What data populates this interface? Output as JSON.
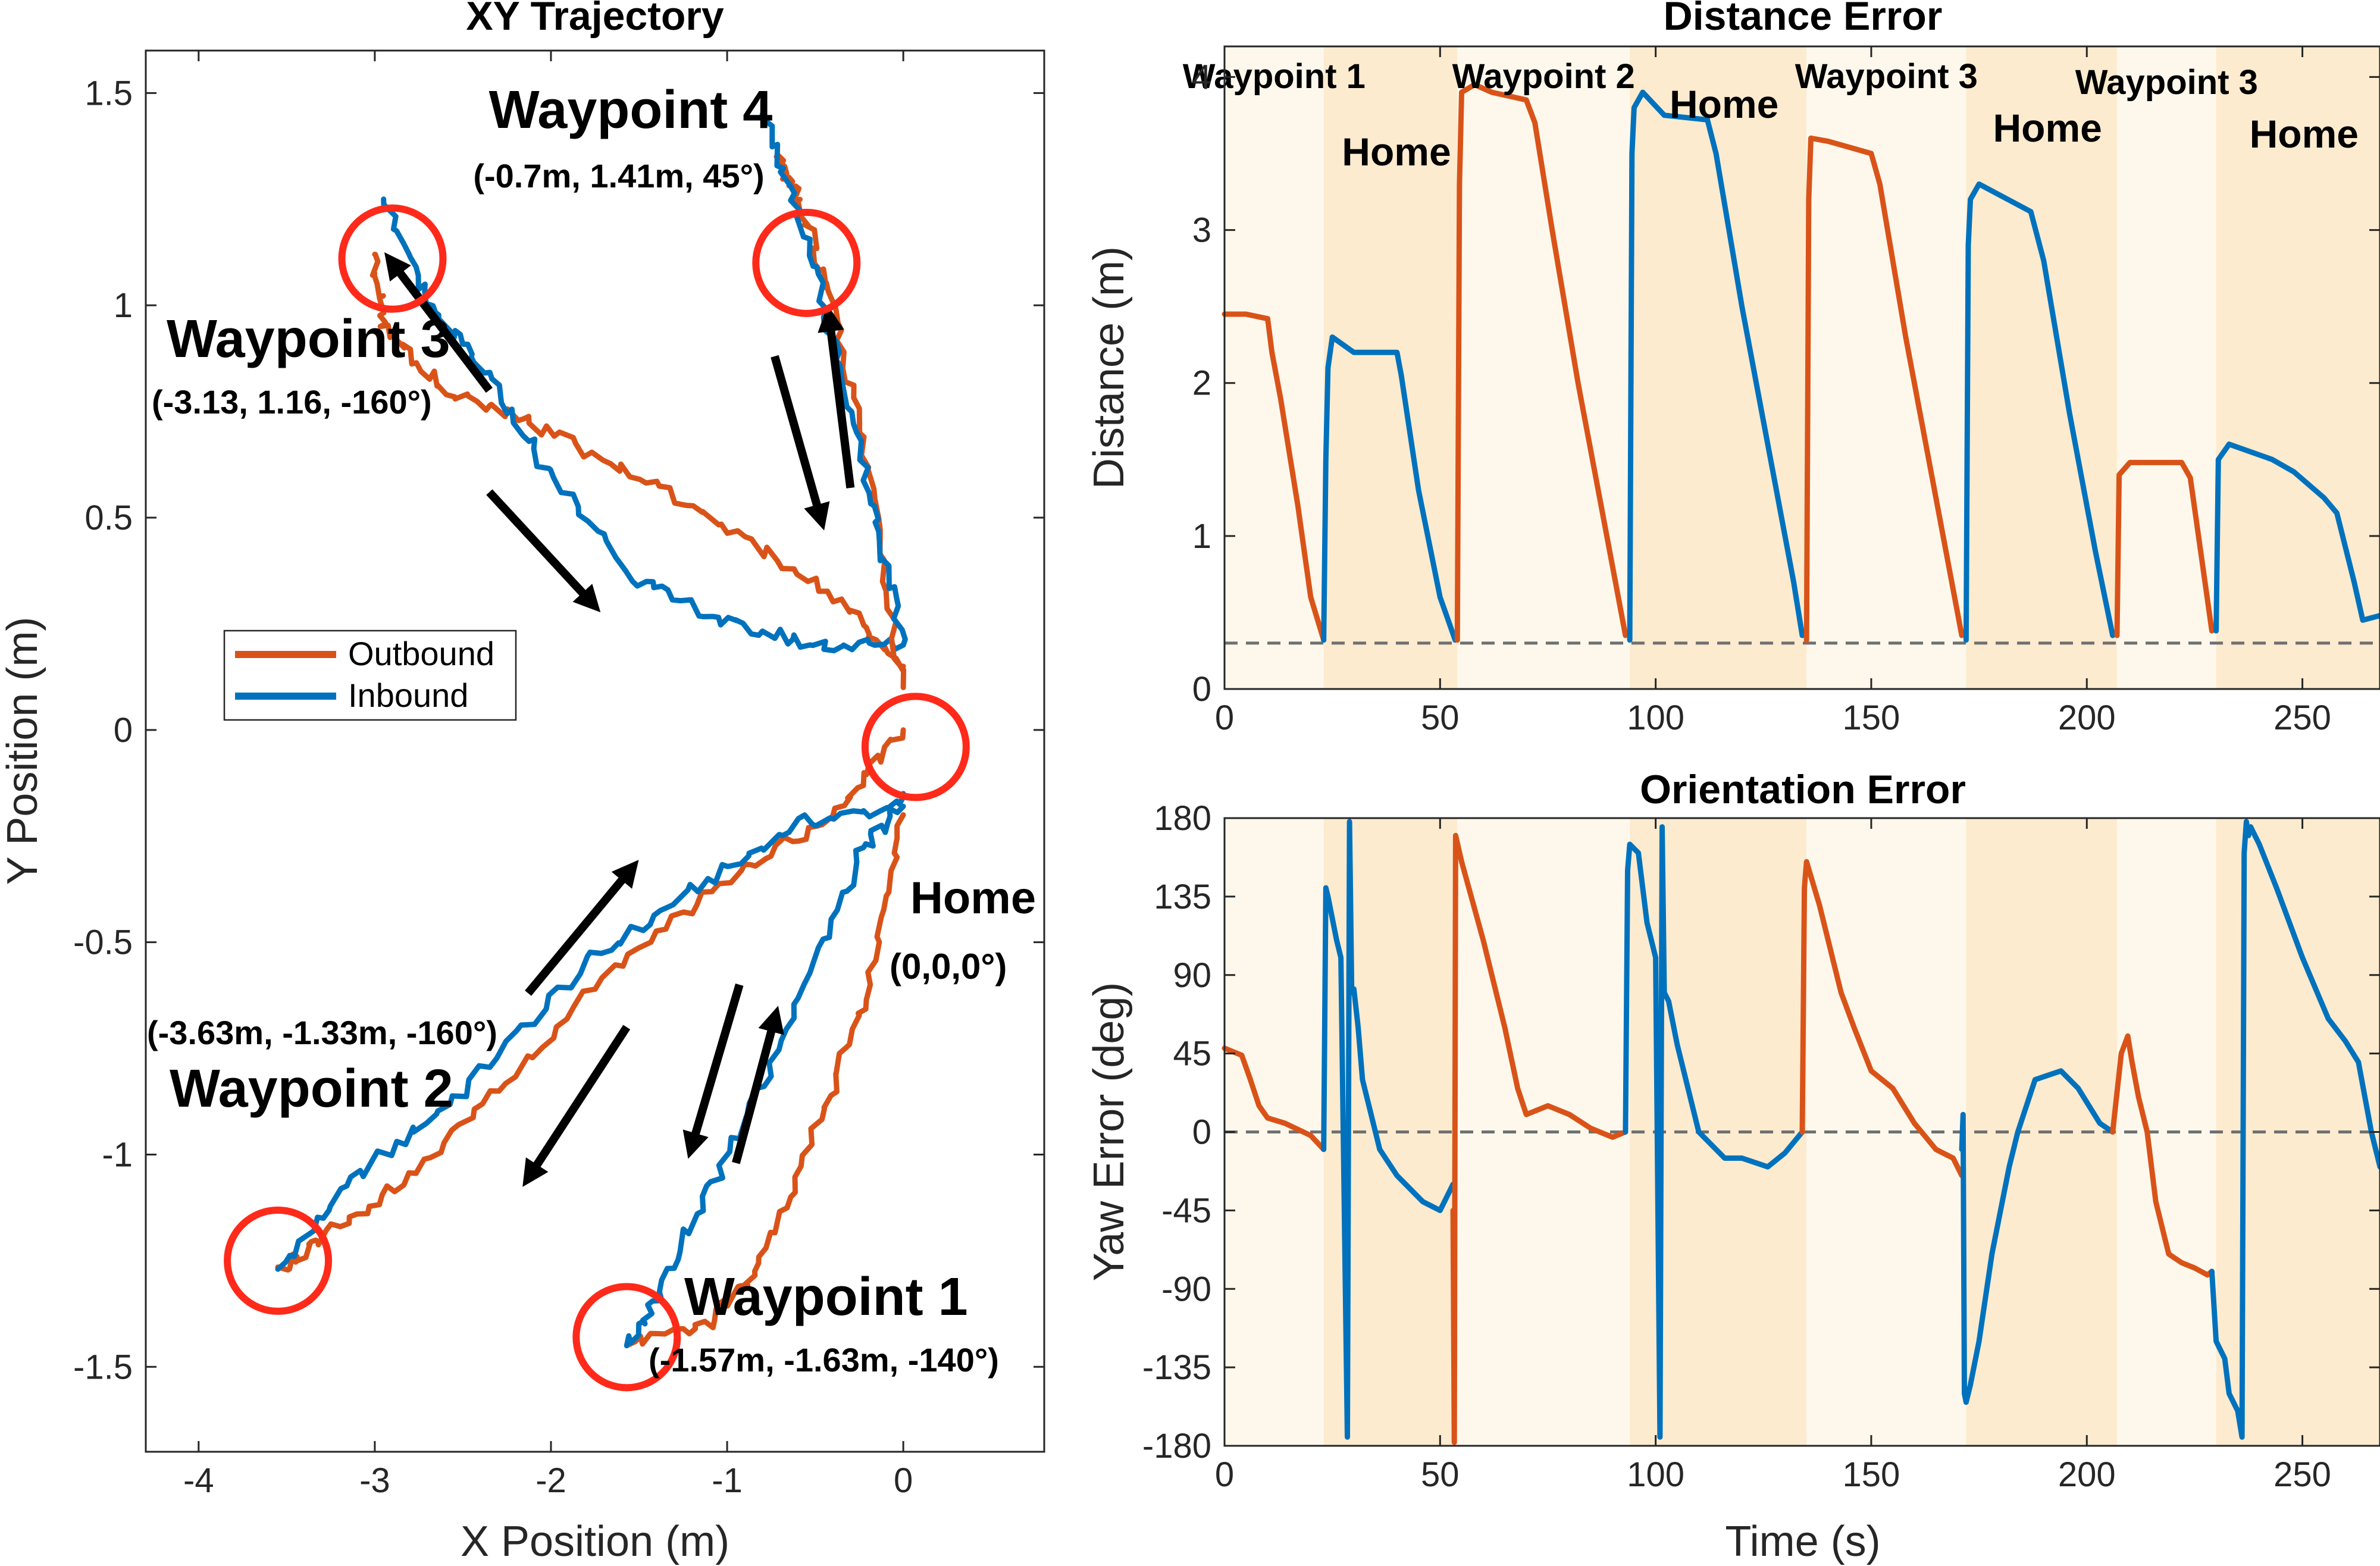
{
  "colors": {
    "outbound": "#D95319",
    "inbound": "#0072BD",
    "circle": "#FF2A1A",
    "arrow": "#000000",
    "shade_light": "#FEF8EC",
    "shade_dark": "#FCEBCF",
    "axis": "#262626",
    "dashed": "#707070"
  },
  "chart_data": [
    {
      "type": "line",
      "id": "xy",
      "title": "XY Trajectory",
      "xlabel": "X Position (m)",
      "ylabel": "Y Position (m)",
      "xlim": [
        -4.3,
        0.8
      ],
      "ylim": [
        -1.7,
        1.6
      ],
      "xticks": [
        -4,
        -3,
        -2,
        -1,
        0
      ],
      "xtick_labels": [
        "-4",
        "-3",
        "-2",
        "-1",
        "0"
      ],
      "yticks": [
        -1.5,
        -1,
        -0.5,
        0,
        0.5,
        1,
        1.5
      ],
      "ytick_labels": [
        "-1.5",
        "-1",
        "-0.5",
        "0",
        "0.5",
        "1",
        "1.5"
      ],
      "legend": {
        "position": "middle-left",
        "entries": [
          "Outbound",
          "Inbound"
        ]
      },
      "series": [
        {
          "name": "Outbound",
          "path_points": [
            [
              0,
              0
            ],
            [
              -0.35,
              -0.18
            ],
            [
              -0.85,
              -0.32
            ],
            [
              -1.5,
              -0.5
            ],
            [
              -2.2,
              -0.8
            ],
            [
              -2.8,
              -1.05
            ],
            [
              -3.3,
              -1.2
            ],
            [
              -3.55,
              -1.27
            ]
          ]
        },
        {
          "name": "Inbound",
          "path_points": [
            [
              -3.55,
              -1.27
            ],
            [
              -3.1,
              -1.05
            ],
            [
              -2.5,
              -0.85
            ],
            [
              -1.8,
              -0.55
            ],
            [
              -1.2,
              -0.38
            ],
            [
              -0.6,
              -0.22
            ],
            [
              0,
              -0.18
            ]
          ]
        },
        {
          "name": "Outbound",
          "path_points": [
            [
              0,
              -0.2
            ],
            [
              -0.2,
              -0.6
            ],
            [
              -0.45,
              -0.9
            ],
            [
              -0.8,
              -1.25
            ],
            [
              -1.1,
              -1.4
            ],
            [
              -1.57,
              -1.45
            ]
          ]
        },
        {
          "name": "Inbound",
          "path_points": [
            [
              -1.57,
              -1.45
            ],
            [
              -1.35,
              -1.3
            ],
            [
              -1.0,
              -1.0
            ],
            [
              -0.6,
              -0.65
            ],
            [
              -0.25,
              -0.3
            ],
            [
              0,
              -0.15
            ]
          ]
        },
        {
          "name": "Outbound",
          "path_points": [
            [
              0,
              0.15
            ],
            [
              -0.3,
              0.28
            ],
            [
              -0.9,
              0.45
            ],
            [
              -1.5,
              0.6
            ],
            [
              -2.1,
              0.72
            ],
            [
              -2.6,
              0.8
            ],
            [
              -2.95,
              0.95
            ],
            [
              -3.0,
              1.12
            ]
          ]
        },
        {
          "name": "Inbound",
          "path_points": [
            [
              -2.95,
              1.25
            ],
            [
              -2.7,
              1.0
            ],
            [
              -2.4,
              0.85
            ],
            [
              -2.0,
              0.6
            ],
            [
              -1.5,
              0.35
            ],
            [
              -1.0,
              0.25
            ],
            [
              -0.5,
              0.2
            ],
            [
              0,
              0.2
            ]
          ]
        },
        {
          "name": "Outbound",
          "path_points": [
            [
              0,
              0.1
            ],
            [
              -0.2,
              0.6
            ],
            [
              -0.4,
              1.0
            ],
            [
              -0.6,
              1.25
            ],
            [
              -0.72,
              1.35
            ]
          ]
        },
        {
          "name": "Inbound",
          "path_points": [
            [
              -0.8,
              1.45
            ],
            [
              -0.55,
              1.15
            ],
            [
              -0.35,
              0.85
            ],
            [
              -0.15,
              0.5
            ],
            [
              0,
              0.2
            ]
          ]
        }
      ],
      "waypoints": [
        {
          "name": "Home",
          "coord_label": "(0,0,0°)",
          "x": 0.07,
          "y": -0.04
        },
        {
          "name": "Waypoint 1",
          "coord_label": "(-1.57m, -1.63m, -140°)",
          "x": -1.57,
          "y": -1.43
        },
        {
          "name": "Waypoint 2",
          "coord_label": "(-3.63m, -1.33m, -160°)",
          "x": -3.55,
          "y": -1.25
        },
        {
          "name": "Waypoint 3",
          "coord_label": "(-3.13, 1.16, -160°)",
          "x": -2.9,
          "y": 1.11
        },
        {
          "name": "Waypoint 4",
          "coord_label": "(-0.7m, 1.41m, 45°)",
          "x": -0.55,
          "y": 1.1
        }
      ],
      "direction_arrows": [
        {
          "from": [
            -2.35,
            0.8
          ],
          "to": [
            -2.9,
            1.1
          ]
        },
        {
          "from": [
            -2.35,
            0.56
          ],
          "to": [
            -1.77,
            0.3
          ]
        },
        {
          "from": [
            -0.73,
            0.88
          ],
          "to": [
            -0.47,
            0.5
          ]
        },
        {
          "from": [
            -0.3,
            0.57
          ],
          "to": [
            -0.42,
            0.97
          ]
        },
        {
          "from": [
            -2.13,
            -0.62
          ],
          "to": [
            -1.55,
            -0.33
          ]
        },
        {
          "from": [
            -1.57,
            -0.7
          ],
          "to": [
            -2.12,
            -1.05
          ]
        },
        {
          "from": [
            -0.93,
            -0.6
          ],
          "to": [
            -1.2,
            -0.98
          ]
        },
        {
          "from": [
            -0.95,
            -1.02
          ],
          "to": [
            -0.73,
            -0.68
          ]
        }
      ]
    },
    {
      "type": "line",
      "id": "distance",
      "title": "Distance Error",
      "xlabel": "",
      "ylabel": "Distance (m)",
      "xlim": [
        0,
        268
      ],
      "ylim": [
        0,
        4.2
      ],
      "xticks": [
        0,
        50,
        100,
        150,
        200,
        250
      ],
      "xtick_labels": [
        "0",
        "50",
        "100",
        "150",
        "200",
        "250"
      ],
      "yticks": [
        0,
        1,
        2,
        3,
        4
      ],
      "ytick_labels": [
        "0",
        "1",
        "2",
        "3",
        "4"
      ],
      "threshold": 0.3,
      "phases": [
        {
          "label": "Waypoint 1",
          "start": 0,
          "end": 23,
          "shade": "light"
        },
        {
          "label": "Home",
          "start": 23,
          "end": 54,
          "shade": "dark"
        },
        {
          "label": "Waypoint 2",
          "start": 54,
          "end": 94,
          "shade": "light"
        },
        {
          "label": "Home",
          "start": 94,
          "end": 135,
          "shade": "dark"
        },
        {
          "label": "Waypoint 3",
          "start": 135,
          "end": 172,
          "shade": "light"
        },
        {
          "label": "Home",
          "start": 172,
          "end": 207,
          "shade": "dark"
        },
        {
          "label": "Waypoint 3",
          "start": 207,
          "end": 230,
          "shade": "light"
        },
        {
          "label": "Home",
          "start": 230,
          "end": 268,
          "shade": "dark"
        }
      ],
      "series": [
        {
          "name": "Outbound",
          "x": [
            0,
            5,
            10,
            11,
            13,
            17,
            20,
            23
          ],
          "y": [
            2.45,
            2.45,
            2.42,
            2.2,
            1.9,
            1.2,
            0.6,
            0.32
          ]
        },
        {
          "name": "Inbound",
          "x": [
            23,
            23.5,
            24,
            25,
            30,
            40,
            41,
            45,
            50,
            53.5
          ],
          "y": [
            0.32,
            1.5,
            2.1,
            2.3,
            2.2,
            2.2,
            2.05,
            1.3,
            0.6,
            0.32
          ]
        },
        {
          "name": "Outbound",
          "x": [
            54,
            54.5,
            55,
            58,
            62,
            70,
            72,
            76,
            82,
            88,
            93
          ],
          "y": [
            0.32,
            3.3,
            3.9,
            3.95,
            3.9,
            3.85,
            3.7,
            3.0,
            2.0,
            1.1,
            0.35
          ]
        },
        {
          "name": "Inbound",
          "x": [
            94,
            94.5,
            95,
            97,
            102,
            112,
            114,
            120,
            126,
            132,
            134
          ],
          "y": [
            0.32,
            3.5,
            3.8,
            3.9,
            3.75,
            3.72,
            3.5,
            2.5,
            1.6,
            0.7,
            0.35
          ]
        },
        {
          "name": "Outbound",
          "x": [
            135,
            135.5,
            136,
            140,
            150,
            152,
            158,
            164,
            171
          ],
          "y": [
            0.32,
            3.2,
            3.6,
            3.58,
            3.5,
            3.3,
            2.3,
            1.4,
            0.35
          ]
        },
        {
          "name": "Inbound",
          "x": [
            172,
            172.5,
            173,
            175,
            187,
            190,
            196,
            202,
            206
          ],
          "y": [
            0.32,
            2.9,
            3.2,
            3.3,
            3.12,
            2.8,
            1.8,
            0.9,
            0.35
          ]
        },
        {
          "name": "Outbound",
          "x": [
            207,
            207.5,
            210,
            222,
            224,
            229
          ],
          "y": [
            0.35,
            1.4,
            1.48,
            1.48,
            1.38,
            0.38
          ]
        },
        {
          "name": "Inbound",
          "x": [
            230,
            230.5,
            233,
            243,
            248,
            255,
            258,
            262,
            264,
            268
          ],
          "y": [
            0.38,
            1.5,
            1.6,
            1.5,
            1.42,
            1.25,
            1.15,
            0.7,
            0.45,
            0.48
          ]
        }
      ]
    },
    {
      "type": "line",
      "id": "orientation",
      "title": "Orientation Error",
      "xlabel": "Time (s)",
      "ylabel": "Yaw Error (deg)",
      "xlim": [
        0,
        268
      ],
      "ylim": [
        -180,
        180
      ],
      "xticks": [
        0,
        50,
        100,
        150,
        200,
        250
      ],
      "xtick_labels": [
        "0",
        "50",
        "100",
        "150",
        "200",
        "250"
      ],
      "yticks": [
        -180,
        -135,
        -90,
        -45,
        0,
        45,
        90,
        135,
        180
      ],
      "ytick_labels": [
        "-180",
        "-135",
        "-90",
        "-45",
        "0",
        "45",
        "90",
        "135",
        "180"
      ],
      "threshold": 0,
      "phases": [
        {
          "start": 0,
          "end": 23,
          "shade": "light"
        },
        {
          "start": 23,
          "end": 54,
          "shade": "dark"
        },
        {
          "start": 54,
          "end": 94,
          "shade": "light"
        },
        {
          "start": 94,
          "end": 135,
          "shade": "dark"
        },
        {
          "start": 135,
          "end": 172,
          "shade": "light"
        },
        {
          "start": 172,
          "end": 207,
          "shade": "dark"
        },
        {
          "start": 207,
          "end": 230,
          "shade": "light"
        },
        {
          "start": 230,
          "end": 268,
          "shade": "dark"
        }
      ],
      "series": [
        {
          "name": "Outbound",
          "x": [
            0,
            4,
            6,
            8,
            10,
            14,
            20,
            23
          ],
          "y": [
            48,
            44,
            30,
            15,
            8,
            5,
            -2,
            -10
          ]
        },
        {
          "name": "Inbound",
          "x": [
            23,
            23.5,
            24,
            26,
            27,
            28.5,
            29,
            29.5,
            30,
            31,
            32,
            36,
            40,
            46,
            50,
            53
          ],
          "y": [
            -10,
            140,
            135,
            110,
            100,
            -175,
            178,
            80,
            82,
            60,
            30,
            -10,
            -25,
            -40,
            -45,
            -30
          ]
        },
        {
          "name": "Outbound",
          "x": [
            53,
            53.3,
            53.6,
            55,
            60,
            65,
            68,
            70,
            75,
            80,
            85,
            90,
            93
          ],
          "y": [
            -45,
            -178,
            170,
            155,
            110,
            60,
            25,
            10,
            15,
            10,
            2,
            -3,
            0
          ]
        },
        {
          "name": "Inbound",
          "x": [
            93,
            93.5,
            94,
            96,
            98,
            100,
            101,
            101.5,
            102,
            103,
            105,
            110,
            116,
            120,
            126,
            130,
            134
          ],
          "y": [
            0,
            150,
            165,
            160,
            120,
            100,
            -175,
            175,
            80,
            75,
            50,
            0,
            -15,
            -15,
            -20,
            -12,
            0
          ]
        },
        {
          "name": "Outbound",
          "x": [
            134,
            134.5,
            135,
            138,
            143,
            146,
            150,
            155,
            160,
            165,
            169,
            171
          ],
          "y": [
            0,
            140,
            155,
            130,
            80,
            60,
            35,
            25,
            5,
            -10,
            -15,
            -25
          ]
        },
        {
          "name": "Inbound",
          "x": [
            171,
            171.3,
            171.6,
            172,
            173,
            175,
            178,
            182,
            184,
            188,
            194,
            198,
            203,
            206
          ],
          "y": [
            -10,
            10,
            -150,
            -155,
            -145,
            -120,
            -70,
            -20,
            0,
            30,
            35,
            25,
            5,
            0
          ]
        },
        {
          "name": "Outbound",
          "x": [
            206,
            208,
            209.5,
            210.5,
            212,
            214,
            216,
            219,
            222,
            225,
            228,
            229
          ],
          "y": [
            0,
            45,
            55,
            40,
            20,
            0,
            -40,
            -70,
            -75,
            -78,
            -82,
            -80
          ]
        },
        {
          "name": "Inbound",
          "x": [
            229,
            230,
            232,
            233,
            235,
            236,
            236.5,
            237,
            237.5,
            238,
            240,
            244,
            250,
            256,
            260,
            263,
            266,
            268
          ],
          "y": [
            -80,
            -120,
            -130,
            -150,
            -160,
            -175,
            160,
            178,
            170,
            175,
            165,
            140,
            100,
            65,
            52,
            40,
            0,
            -20
          ]
        }
      ]
    }
  ]
}
